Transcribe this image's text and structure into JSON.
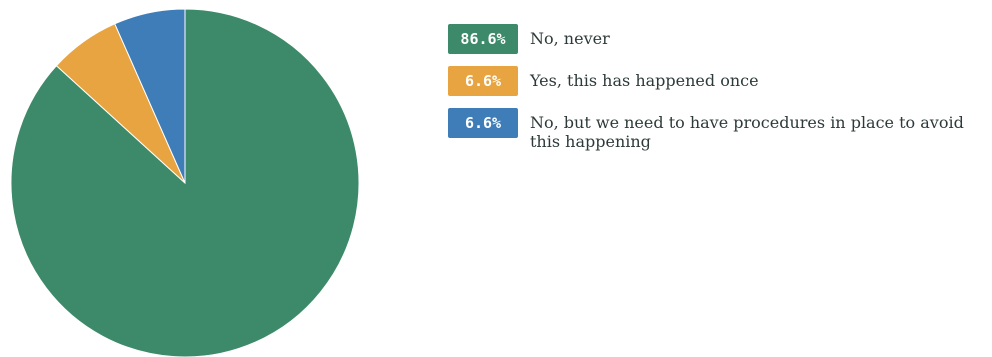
{
  "chart_data": {
    "type": "pie",
    "title": "",
    "legend_position": "right",
    "slices": [
      {
        "label": "No, never",
        "value": 86.6,
        "display": "86.6%",
        "color": "#3d8a6a"
      },
      {
        "label": "Yes, this has happened once",
        "value": 6.6,
        "display": "6.6%",
        "color": "#e8a441"
      },
      {
        "label": "No, but we need to have procedures in place to avoid this happening",
        "value": 6.6,
        "display": "6.6%",
        "color": "#3f7db8"
      }
    ]
  }
}
